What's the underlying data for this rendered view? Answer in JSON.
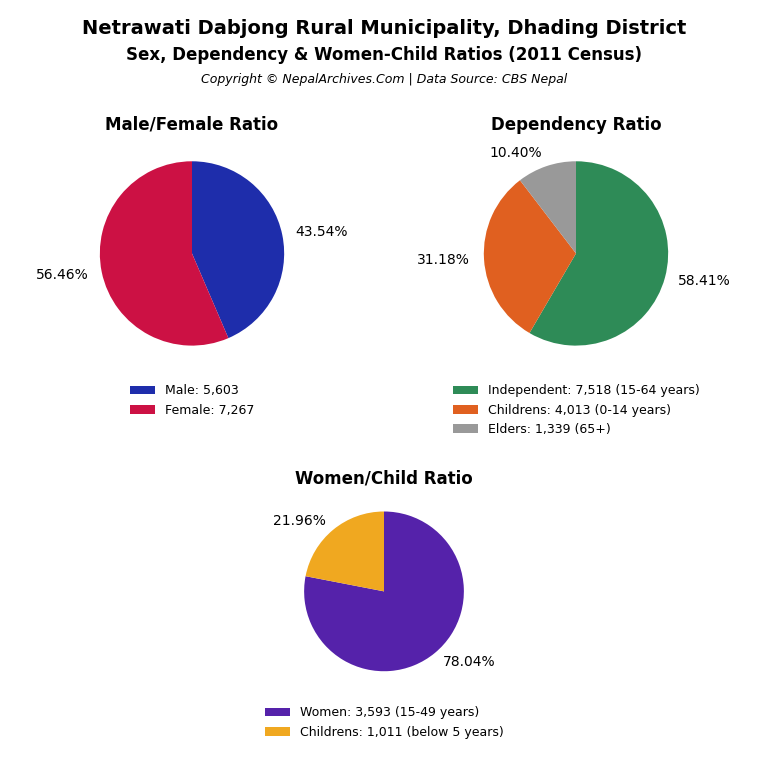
{
  "title": "Netrawati Dabjong Rural Municipality, Dhading District",
  "subtitle": "Sex, Dependency & Women-Child Ratios (2011 Census)",
  "annotations": [
    "Copyright © NepalArchives.Com | Data Source: CBS Nepal"
  ],
  "chart_data": [
    {
      "type": "pie",
      "title": "Male/Female Ratio",
      "categories": [
        "Male: 5,603",
        "Female: 7,267"
      ],
      "values": [
        43.54,
        56.46
      ],
      "value_labels": [
        "43.54%",
        "56.46%"
      ],
      "colors": [
        "#1e2dab",
        "#cc1144"
      ],
      "data_labels": true,
      "legend": "upper center"
    },
    {
      "type": "pie",
      "title": "Dependency Ratio",
      "categories": [
        "Independent: 7,518 (15-64 years)",
        "Childrens: 4,013 (0-14 years)",
        "Elders: 1,339 (65+)"
      ],
      "values": [
        58.41,
        31.18,
        10.4
      ],
      "value_labels": [
        "58.41%",
        "31.18%",
        "10.40%"
      ],
      "colors": [
        "#2e8b57",
        "#e06020",
        "#999999"
      ],
      "data_labels": true,
      "legend": "upper center"
    },
    {
      "type": "pie",
      "title": "Women/Child Ratio",
      "categories": [
        "Women: 3,593 (15-49 years)",
        "Childrens: 1,011 (below 5 years)"
      ],
      "values": [
        78.04,
        21.96
      ],
      "value_labels": [
        "78.04%",
        "21.96%"
      ],
      "colors": [
        "#5522aa",
        "#f0a820"
      ],
      "data_labels": true,
      "legend": "upper center"
    }
  ]
}
